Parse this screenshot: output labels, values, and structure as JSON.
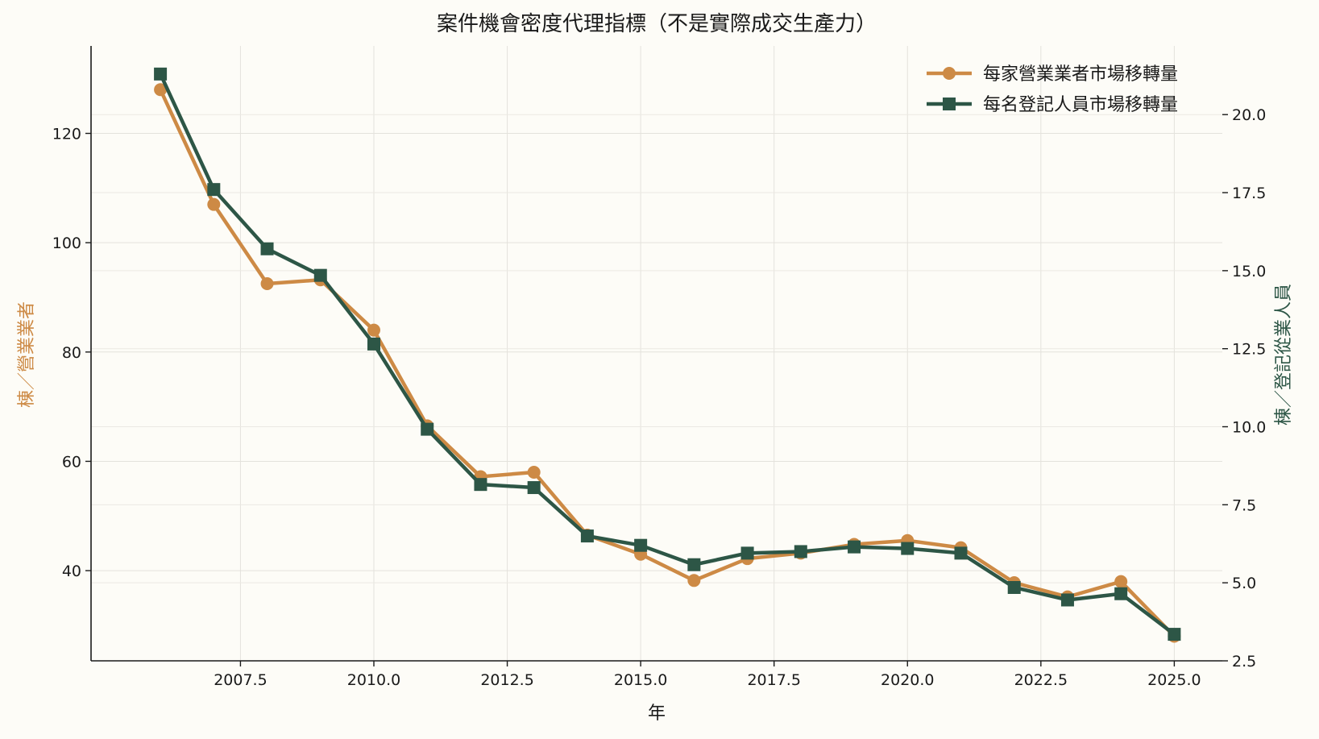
{
  "chart_data": {
    "type": "line",
    "title": "案件機會密度代理指標（不是實際成交生產力）",
    "xlabel": "年",
    "ylabel_left": "棟／營業業者",
    "ylabel_right": "棟／登記從業人員",
    "x": [
      2006,
      2007,
      2008,
      2009,
      2010,
      2011,
      2012,
      2013,
      2014,
      2015,
      2016,
      2017,
      2018,
      2019,
      2020,
      2021,
      2022,
      2023,
      2024,
      2025
    ],
    "xlim": [
      2004.7,
      2025.9
    ],
    "x_ticks": [
      2007.5,
      2010.0,
      2012.5,
      2015.0,
      2017.5,
      2020.0,
      2022.5,
      2025.0
    ],
    "x_tick_labels": [
      "2007.5",
      "2010.0",
      "2012.5",
      "2015.0",
      "2017.5",
      "2020.0",
      "2022.5",
      "2025.0"
    ],
    "ylim_left": [
      23.5,
      136
    ],
    "y_ticks_left": [
      40,
      60,
      80,
      100,
      120
    ],
    "y_tick_labels_left": [
      "40",
      "60",
      "80",
      "100",
      "120"
    ],
    "ylim_right": [
      2.5,
      22.2
    ],
    "y_ticks_right": [
      2.5,
      5.0,
      7.5,
      10.0,
      12.5,
      15.0,
      17.5,
      20.0
    ],
    "y_tick_labels_right": [
      "2.5",
      "5.0",
      "7.5",
      "10.0",
      "12.5",
      "15.0",
      "17.5",
      "20.0"
    ],
    "grid": true,
    "legend_position": "top-right",
    "series": [
      {
        "name": "每家營業業者市場移轉量",
        "axis": "left",
        "marker": "circle",
        "color": "#cd8a45",
        "values": [
          128,
          107,
          92.5,
          93.2,
          84,
          66.5,
          57.2,
          58,
          46.5,
          43,
          38.2,
          42.2,
          43.2,
          44.8,
          45.5,
          44.2,
          37.8,
          35.2,
          38,
          28
        ]
      },
      {
        "name": "每名登記人員市場移轉量",
        "axis": "right",
        "marker": "square",
        "color": "#2d5646",
        "values": [
          21.3,
          17.6,
          15.7,
          14.85,
          12.65,
          9.92,
          8.15,
          8.05,
          6.5,
          6.2,
          5.58,
          5.95,
          6.0,
          6.15,
          6.1,
          5.95,
          4.85,
          4.45,
          4.65,
          3.35
        ]
      }
    ]
  }
}
